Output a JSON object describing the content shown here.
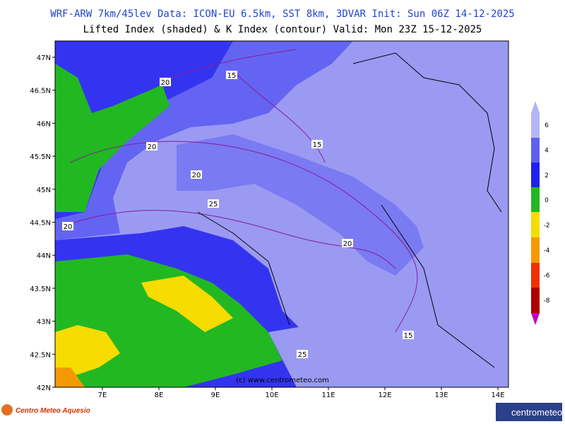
{
  "header": {
    "line1": "WRF-ARW 7km/45lev   Data: ICON-EU 6.5km, SST 8km, 3DVAR   Init: Sun 06Z 14-12-2025",
    "line2": "Lifted Index (shaded) & K Index (contour)  Valid: Mon 23Z 15-12-2025"
  },
  "map": {
    "lat_labels": [
      "47N",
      "46.5N",
      "46N",
      "45.5N",
      "45N",
      "44.5N",
      "44N",
      "43.5N",
      "43N",
      "42.5N",
      "42N"
    ],
    "lon_labels": [
      "7E",
      "8E",
      "9E",
      "10E",
      "11E",
      "12E",
      "13E",
      "14E"
    ],
    "contour_labels": [
      "20",
      "15",
      "20",
      "20",
      "25",
      "20",
      "20",
      "15",
      "15",
      "25"
    ],
    "watermark": "(c) www.centrometeo.com"
  },
  "colorbar": {
    "labels": [
      "6",
      "4",
      "2",
      "0",
      "-2",
      "-4",
      "-6",
      "-8"
    ]
  },
  "footer": {
    "logo_left": "Centro Meteo Aquesio",
    "logo_right": "centrometeo"
  }
}
